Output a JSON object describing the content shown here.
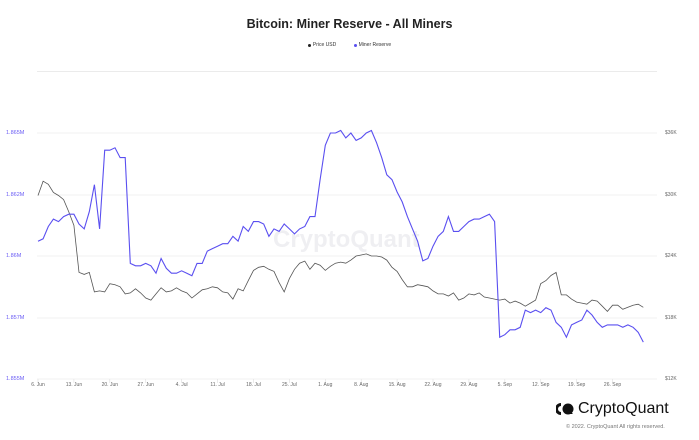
{
  "title": "Bitcoin: Miner Reserve - All Miners",
  "legend": [
    {
      "label": "Price USD",
      "color": "#222222"
    },
    {
      "label": "Miner Reserve",
      "color": "#5a4ff0"
    }
  ],
  "watermark": "CryptoQuant",
  "brand": {
    "name": "CryptoQuant",
    "copyright": "© 2022. CryptoQuant All rights reserved."
  },
  "axes": {
    "left": {
      "labels": [
        "1.865M",
        "1.862M",
        "1.86M",
        "1.857M",
        "1.855M"
      ],
      "color": "#6a5cf5"
    },
    "right": {
      "labels": [
        "$36K",
        "$30K",
        "$24K",
        "$18K",
        "$12K"
      ]
    },
    "x": {
      "labels": [
        "6. Jun",
        "13. Jun",
        "20. Jun",
        "27. Jun",
        "4. Jul",
        "11. Jul",
        "18. Jul",
        "25. Jul",
        "1. Aug",
        "8. Aug",
        "15. Aug",
        "22. Aug",
        "29. Aug",
        "5. Sep",
        "12. Sep",
        "19. Sep",
        "26. Sep"
      ]
    }
  },
  "chart_data": {
    "type": "line",
    "title": "Bitcoin: Miner Reserve - All Miners",
    "xlabel": "",
    "ylabel_left": "Miner Reserve (BTC)",
    "ylabel_right": "Price USD",
    "ylim_left": [
      1855000,
      1865000
    ],
    "ylim_right": [
      12000,
      36000
    ],
    "x_ticks": [
      "6. Jun",
      "13. Jun",
      "20. Jun",
      "27. Jun",
      "4. Jul",
      "11. Jul",
      "18. Jul",
      "25. Jul",
      "1. Aug",
      "8. Aug",
      "15. Aug",
      "22. Aug",
      "29. Aug",
      "5. Sep",
      "12. Sep",
      "19. Sep",
      "26. Sep"
    ],
    "x_start": "2022-06-06",
    "x_end": "2022-09-30",
    "grid": true,
    "legend_position": "top",
    "series": [
      {
        "name": "Miner Reserve",
        "axis": "left",
        "color": "#5a4ff0",
        "values": [
          1860600,
          1860700,
          1861200,
          1861500,
          1861400,
          1861600,
          1861700,
          1861700,
          1861300,
          1861100,
          1861800,
          1862900,
          1861100,
          1864300,
          1864300,
          1864400,
          1864000,
          1864000,
          1859700,
          1859600,
          1859600,
          1859700,
          1859600,
          1859300,
          1859900,
          1859500,
          1859300,
          1859300,
          1859400,
          1859300,
          1859200,
          1859700,
          1859700,
          1860200,
          1860300,
          1860400,
          1860500,
          1860500,
          1860800,
          1860600,
          1861200,
          1861000,
          1861400,
          1861400,
          1861300,
          1860800,
          1861100,
          1861000,
          1861300,
          1861100,
          1860900,
          1861100,
          1861200,
          1861600,
          1861600,
          1863100,
          1864500,
          1865000,
          1865000,
          1865100,
          1864800,
          1865000,
          1864700,
          1864800,
          1865000,
          1865100,
          1864600,
          1864000,
          1863300,
          1863100,
          1862600,
          1862200,
          1861600,
          1861100,
          1860600,
          1859800,
          1859900,
          1860400,
          1860800,
          1861000,
          1861600,
          1861000,
          1861000,
          1861200,
          1861400,
          1861500,
          1861500,
          1861600,
          1861700,
          1861400,
          1856700,
          1856800,
          1857000,
          1857000,
          1857100,
          1857800,
          1857700,
          1857800,
          1857700,
          1857900,
          1857800,
          1857300,
          1857100,
          1856700,
          1857200,
          1857300,
          1857400,
          1857800,
          1857600,
          1857300,
          1857100,
          1857200,
          1857200,
          1857200,
          1857100,
          1857200,
          1857100,
          1856900,
          1856500
        ]
      },
      {
        "name": "Price USD",
        "axis": "right",
        "color": "#222222",
        "values": [
          29900,
          31300,
          31000,
          30200,
          29900,
          29500,
          28300,
          27000,
          22400,
          22200,
          22400,
          20500,
          20600,
          20500,
          21300,
          21200,
          21000,
          20300,
          20400,
          20800,
          20400,
          19900,
          19700,
          20300,
          20900,
          20500,
          20600,
          20900,
          20600,
          20400,
          19900,
          20300,
          20700,
          20800,
          21000,
          20900,
          20500,
          20400,
          19800,
          20800,
          20600,
          21600,
          22600,
          22900,
          23000,
          22700,
          22500,
          21400,
          20500,
          21800,
          22700,
          23300,
          23500,
          22700,
          23300,
          23100,
          22600,
          23000,
          23300,
          23400,
          23300,
          23600,
          24000,
          24100,
          24200,
          24000,
          24000,
          23900,
          23600,
          22900,
          22500,
          21700,
          21000,
          21000,
          21200,
          21100,
          21000,
          20600,
          20300,
          20300,
          20100,
          20400,
          19700,
          19900,
          20300,
          20200,
          20400,
          20000,
          19900,
          19800,
          19700,
          19800,
          19400,
          19600,
          19400,
          19100,
          19400,
          19700,
          21300,
          21600,
          22100,
          22400,
          20200,
          20200,
          19800,
          19500,
          19400,
          19300,
          19700,
          19600,
          19100,
          18600,
          19200,
          19200,
          18800,
          19000,
          19200,
          19300,
          19000
        ]
      }
    ]
  }
}
